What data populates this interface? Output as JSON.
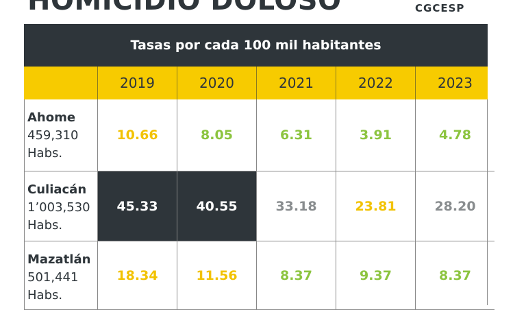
{
  "header": {
    "title": "HOMICIDIO DOLOSO",
    "logo": "CGCESP"
  },
  "table": {
    "caption": "Tasas por cada 100 mil habitantes",
    "columns": [
      "2019",
      "2020",
      "2021",
      "2022",
      "2023"
    ],
    "rows": [
      {
        "name": "Ahome",
        "population": "459,310",
        "unit": "Habs.",
        "values": [
          "10.66",
          "8.05",
          "6.31",
          "3.91",
          "4.78"
        ]
      },
      {
        "name": "Culiacán",
        "population": "1’003,530",
        "unit": "Habs.",
        "values": [
          "45.33",
          "40.55",
          "33.18",
          "23.81",
          "28.20"
        ]
      },
      {
        "name": "Mazatlán",
        "population": "501,441",
        "unit": "Habs.",
        "values": [
          "18.34",
          "11.56",
          "8.37",
          "9.37",
          "8.37"
        ]
      }
    ]
  }
}
